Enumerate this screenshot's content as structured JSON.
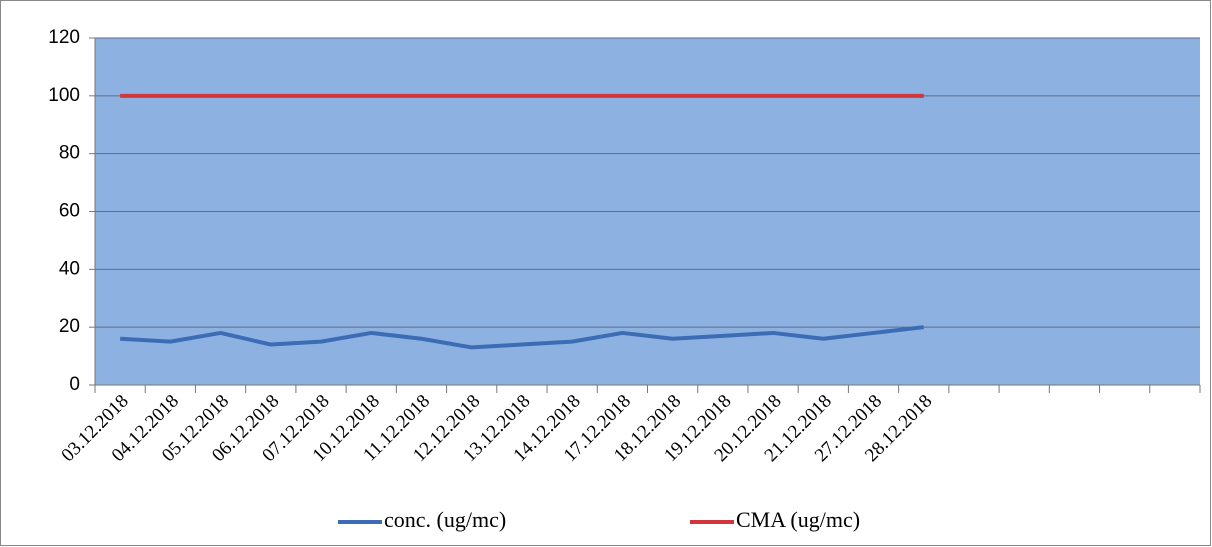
{
  "chart_data": {
    "type": "line",
    "categories": [
      "03.12.2018",
      "04.12.2018",
      "05.12.2018",
      "06.12.2018",
      "07.12.2018",
      "10.12.2018",
      "11.12.2018",
      "12.12.2018",
      "13.12.2018",
      "14.12.2018",
      "17.12.2018",
      "18.12.2018",
      "19.12.2018",
      "20.12.2018",
      "21.12.2018",
      "27.12.2018",
      "28.12.2018",
      null,
      null,
      null,
      null,
      null
    ],
    "series": [
      {
        "name": "conc. (ug/mc)",
        "color": "#3c6db4",
        "values": [
          16,
          15,
          18,
          14,
          15,
          18,
          16,
          13,
          14,
          15,
          18,
          16,
          17,
          18,
          16,
          18,
          20,
          null,
          null,
          null,
          null,
          null
        ]
      },
      {
        "name": "CMA (ug/mc)",
        "color": "#d0363a",
        "values": [
          100,
          100,
          100,
          100,
          100,
          100,
          100,
          100,
          100,
          100,
          100,
          100,
          100,
          100,
          100,
          100,
          100,
          null,
          null,
          null,
          null,
          null
        ]
      }
    ],
    "ylim": [
      0,
      120
    ],
    "yticks": [
      0,
      20,
      40,
      60,
      80,
      100,
      120
    ],
    "grid": true,
    "legend": "bottom"
  }
}
